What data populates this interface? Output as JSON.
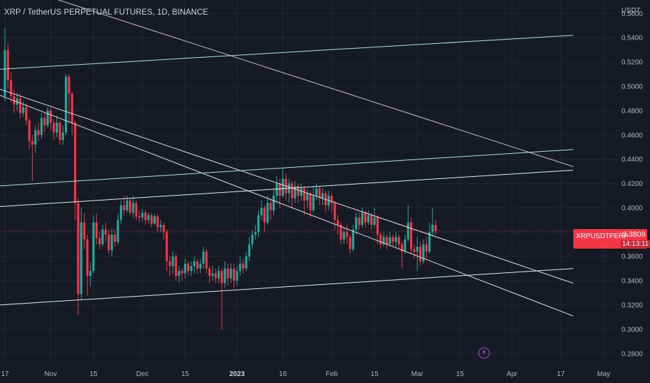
{
  "chart_data": {
    "type": "candlestick",
    "title": "XRP / TetherUS PERPETUAL FUTURES, 1D, BINANCE",
    "y_unit": "USDT",
    "y_ticks": [
      "0.5600",
      "0.5400",
      "0.5200",
      "0.5000",
      "0.4800",
      "0.4600",
      "0.4400",
      "0.4200",
      "0.4000",
      "0.3800",
      "0.3600",
      "0.3400",
      "0.3200",
      "0.3000",
      "0.2800"
    ],
    "ylim": [
      0.273,
      0.5665
    ],
    "x_ticks": [
      {
        "label": "17",
        "day": 0,
        "bold": false
      },
      {
        "label": "Nov",
        "day": 15,
        "bold": false
      },
      {
        "label": "15",
        "day": 29,
        "bold": false
      },
      {
        "label": "Dec",
        "day": 45,
        "bold": false
      },
      {
        "label": "15",
        "day": 59,
        "bold": false
      },
      {
        "label": "2023",
        "day": 76,
        "bold": true
      },
      {
        "label": "16",
        "day": 91,
        "bold": false
      },
      {
        "label": "Feb",
        "day": 107,
        "bold": false
      },
      {
        "label": "15",
        "day": 121,
        "bold": false
      },
      {
        "label": "Mar",
        "day": 135,
        "bold": false
      },
      {
        "label": "15",
        "day": 149,
        "bold": false
      },
      {
        "label": "Apr",
        "day": 166,
        "bold": false
      },
      {
        "label": "17",
        "day": 182,
        "bold": false
      },
      {
        "label": "May",
        "day": 196,
        "bold": false
      }
    ],
    "current_price": {
      "symbol": "XRPUSDTPERP",
      "value": "0.3809",
      "countdown": "14:13:11"
    },
    "candles": [
      [
        0.492,
        0.53,
        0.548,
        0.488
      ],
      [
        0.53,
        0.505,
        0.535,
        0.497
      ],
      [
        0.505,
        0.492,
        0.512,
        0.487
      ],
      [
        0.492,
        0.485,
        0.498,
        0.478
      ],
      [
        0.485,
        0.49,
        0.495,
        0.48
      ],
      [
        0.49,
        0.478,
        0.494,
        0.474
      ],
      [
        0.478,
        0.483,
        0.488,
        0.475
      ],
      [
        0.483,
        0.472,
        0.486,
        0.468
      ],
      [
        0.472,
        0.455,
        0.474,
        0.448
      ],
      [
        0.455,
        0.452,
        0.46,
        0.422
      ],
      [
        0.452,
        0.464,
        0.468,
        0.445
      ],
      [
        0.464,
        0.46,
        0.47,
        0.455
      ],
      [
        0.46,
        0.474,
        0.478,
        0.457
      ],
      [
        0.474,
        0.468,
        0.478,
        0.462
      ],
      [
        0.468,
        0.48,
        0.483,
        0.466
      ],
      [
        0.48,
        0.47,
        0.482,
        0.464
      ],
      [
        0.47,
        0.462,
        0.473,
        0.456
      ],
      [
        0.462,
        0.47,
        0.476,
        0.458
      ],
      [
        0.47,
        0.456,
        0.472,
        0.452
      ],
      [
        0.456,
        0.462,
        0.468,
        0.452
      ],
      [
        0.462,
        0.508,
        0.51,
        0.46
      ],
      [
        0.508,
        0.494,
        0.51,
        0.47
      ],
      [
        0.494,
        0.47,
        0.496,
        0.46
      ],
      [
        0.47,
        0.404,
        0.472,
        0.39
      ],
      [
        0.404,
        0.329,
        0.408,
        0.312
      ],
      [
        0.329,
        0.388,
        0.4,
        0.325
      ],
      [
        0.388,
        0.374,
        0.396,
        0.366
      ],
      [
        0.374,
        0.344,
        0.378,
        0.328
      ],
      [
        0.344,
        0.348,
        0.355,
        0.335
      ],
      [
        0.348,
        0.388,
        0.394,
        0.346
      ],
      [
        0.388,
        0.375,
        0.395,
        0.37
      ],
      [
        0.375,
        0.37,
        0.38,
        0.366
      ],
      [
        0.37,
        0.382,
        0.386,
        0.368
      ],
      [
        0.382,
        0.378,
        0.388,
        0.372
      ],
      [
        0.378,
        0.365,
        0.382,
        0.362
      ],
      [
        0.365,
        0.378,
        0.383,
        0.36
      ],
      [
        0.378,
        0.372,
        0.382,
        0.368
      ],
      [
        0.372,
        0.39,
        0.395,
        0.37
      ],
      [
        0.39,
        0.402,
        0.406,
        0.387
      ],
      [
        0.402,
        0.398,
        0.41,
        0.394
      ],
      [
        0.398,
        0.406,
        0.41,
        0.396
      ],
      [
        0.406,
        0.396,
        0.408,
        0.394
      ],
      [
        0.396,
        0.404,
        0.41,
        0.392
      ],
      [
        0.404,
        0.393,
        0.406,
        0.39
      ],
      [
        0.393,
        0.392,
        0.398,
        0.388
      ],
      [
        0.392,
        0.396,
        0.399,
        0.389
      ],
      [
        0.396,
        0.39,
        0.398,
        0.386
      ],
      [
        0.39,
        0.394,
        0.396,
        0.387
      ],
      [
        0.394,
        0.387,
        0.396,
        0.384
      ],
      [
        0.387,
        0.393,
        0.395,
        0.386
      ],
      [
        0.393,
        0.384,
        0.395,
        0.38
      ],
      [
        0.384,
        0.386,
        0.39,
        0.38
      ],
      [
        0.386,
        0.38,
        0.388,
        0.374
      ],
      [
        0.38,
        0.356,
        0.382,
        0.348
      ],
      [
        0.356,
        0.352,
        0.36,
        0.344
      ],
      [
        0.352,
        0.36,
        0.364,
        0.346
      ],
      [
        0.36,
        0.344,
        0.362,
        0.34
      ],
      [
        0.344,
        0.348,
        0.352,
        0.338
      ],
      [
        0.348,
        0.346,
        0.35,
        0.34
      ],
      [
        0.346,
        0.354,
        0.358,
        0.342
      ],
      [
        0.354,
        0.348,
        0.356,
        0.344
      ],
      [
        0.348,
        0.352,
        0.356,
        0.344
      ],
      [
        0.352,
        0.356,
        0.36,
        0.346
      ],
      [
        0.356,
        0.35,
        0.358,
        0.346
      ],
      [
        0.35,
        0.354,
        0.358,
        0.346
      ],
      [
        0.354,
        0.364,
        0.368,
        0.35
      ],
      [
        0.364,
        0.35,
        0.366,
        0.346
      ],
      [
        0.35,
        0.344,
        0.352,
        0.338
      ],
      [
        0.344,
        0.346,
        0.352,
        0.34
      ],
      [
        0.346,
        0.342,
        0.35,
        0.338
      ],
      [
        0.342,
        0.348,
        0.352,
        0.338
      ],
      [
        0.348,
        0.338,
        0.35,
        0.3
      ],
      [
        0.338,
        0.35,
        0.356,
        0.334
      ],
      [
        0.35,
        0.342,
        0.354,
        0.336
      ],
      [
        0.342,
        0.35,
        0.354,
        0.338
      ],
      [
        0.35,
        0.34,
        0.354,
        0.334
      ],
      [
        0.34,
        0.348,
        0.352,
        0.336
      ],
      [
        0.348,
        0.354,
        0.36,
        0.344
      ],
      [
        0.354,
        0.35,
        0.358,
        0.346
      ],
      [
        0.35,
        0.36,
        0.364,
        0.348
      ],
      [
        0.36,
        0.37,
        0.376,
        0.356
      ],
      [
        0.37,
        0.378,
        0.382,
        0.366
      ],
      [
        0.378,
        0.38,
        0.386,
        0.374
      ],
      [
        0.38,
        0.394,
        0.398,
        0.376
      ],
      [
        0.394,
        0.4,
        0.406,
        0.39
      ],
      [
        0.4,
        0.388,
        0.402,
        0.38
      ],
      [
        0.388,
        0.404,
        0.41,
        0.386
      ],
      [
        0.404,
        0.398,
        0.408,
        0.39
      ],
      [
        0.398,
        0.41,
        0.416,
        0.394
      ],
      [
        0.41,
        0.42,
        0.426,
        0.404
      ],
      [
        0.42,
        0.41,
        0.424,
        0.4
      ],
      [
        0.41,
        0.424,
        0.433,
        0.408
      ],
      [
        0.424,
        0.412,
        0.428,
        0.406
      ],
      [
        0.412,
        0.42,
        0.424,
        0.404
      ],
      [
        0.42,
        0.408,
        0.422,
        0.4
      ],
      [
        0.408,
        0.418,
        0.422,
        0.404
      ],
      [
        0.418,
        0.41,
        0.42,
        0.404
      ],
      [
        0.41,
        0.416,
        0.42,
        0.406
      ],
      [
        0.416,
        0.406,
        0.418,
        0.394
      ],
      [
        0.406,
        0.412,
        0.416,
        0.4
      ],
      [
        0.412,
        0.398,
        0.414,
        0.392
      ],
      [
        0.398,
        0.41,
        0.418,
        0.396
      ],
      [
        0.41,
        0.416,
        0.42,
        0.406
      ],
      [
        0.416,
        0.408,
        0.418,
        0.402
      ],
      [
        0.408,
        0.412,
        0.416,
        0.402
      ],
      [
        0.412,
        0.402,
        0.414,
        0.396
      ],
      [
        0.402,
        0.41,
        0.414,
        0.398
      ],
      [
        0.41,
        0.404,
        0.412,
        0.396
      ],
      [
        0.404,
        0.39,
        0.406,
        0.382
      ],
      [
        0.39,
        0.386,
        0.394,
        0.378
      ],
      [
        0.386,
        0.374,
        0.388,
        0.37
      ],
      [
        0.374,
        0.38,
        0.384,
        0.37
      ],
      [
        0.38,
        0.376,
        0.386,
        0.37
      ],
      [
        0.376,
        0.366,
        0.378,
        0.362
      ],
      [
        0.366,
        0.382,
        0.386,
        0.364
      ],
      [
        0.382,
        0.392,
        0.396,
        0.378
      ],
      [
        0.392,
        0.386,
        0.396,
        0.382
      ],
      [
        0.386,
        0.396,
        0.4,
        0.384
      ],
      [
        0.396,
        0.388,
        0.398,
        0.384
      ],
      [
        0.388,
        0.394,
        0.398,
        0.386
      ],
      [
        0.394,
        0.386,
        0.396,
        0.382
      ],
      [
        0.386,
        0.392,
        0.4,
        0.384
      ],
      [
        0.392,
        0.378,
        0.394,
        0.37
      ],
      [
        0.378,
        0.37,
        0.38,
        0.366
      ],
      [
        0.37,
        0.376,
        0.38,
        0.368
      ],
      [
        0.376,
        0.37,
        0.378,
        0.366
      ],
      [
        0.37,
        0.376,
        0.38,
        0.368
      ],
      [
        0.376,
        0.372,
        0.378,
        0.368
      ],
      [
        0.372,
        0.376,
        0.38,
        0.368
      ],
      [
        0.376,
        0.37,
        0.378,
        0.366
      ],
      [
        0.37,
        0.364,
        0.372,
        0.35
      ],
      [
        0.364,
        0.374,
        0.378,
        0.362
      ],
      [
        0.374,
        0.388,
        0.402,
        0.372
      ],
      [
        0.388,
        0.366,
        0.392,
        0.362
      ],
      [
        0.366,
        0.364,
        0.37,
        0.358
      ],
      [
        0.364,
        0.368,
        0.376,
        0.348
      ],
      [
        0.368,
        0.356,
        0.372,
        0.352
      ],
      [
        0.356,
        0.37,
        0.374,
        0.354
      ],
      [
        0.37,
        0.364,
        0.376,
        0.358
      ],
      [
        0.364,
        0.38,
        0.388,
        0.362
      ],
      [
        0.38,
        0.386,
        0.4,
        0.376
      ],
      [
        0.386,
        0.3809,
        0.39,
        0.378
      ]
    ]
  },
  "lines": [
    {
      "name": "descending-line-upper",
      "color": "#e8e2e2",
      "from": [
        -2,
        0.498
      ],
      "to": [
        186,
        0.338
      ]
    },
    {
      "name": "descending-line-lower",
      "color": "#e8e2e2",
      "from": [
        -2,
        0.493
      ],
      "to": [
        186,
        0.311
      ]
    },
    {
      "name": "descending-line-pink",
      "color": "#d9b8cf",
      "from": [
        -2,
        0.587
      ],
      "to": [
        186,
        0.434
      ]
    },
    {
      "name": "ascending-line-top",
      "color": "#aee8dc",
      "from": [
        -2,
        0.514
      ],
      "to": [
        186,
        0.542
      ]
    },
    {
      "name": "ascending-line-mid-upper",
      "color": "#aee8dc",
      "from": [
        -2,
        0.418
      ],
      "to": [
        186,
        0.448
      ]
    },
    {
      "name": "ascending-line-mid-lower",
      "color": "#d9f4ee",
      "from": [
        -2,
        0.401
      ],
      "to": [
        186,
        0.431
      ]
    },
    {
      "name": "ascending-line-bottom",
      "color": "#d9f4ee",
      "from": [
        -2,
        0.32
      ],
      "to": [
        186,
        0.35
      ]
    }
  ],
  "colors": {
    "up": "#26a69a",
    "down": "#f23645",
    "grid": "#232734",
    "bg": "#161a25"
  }
}
